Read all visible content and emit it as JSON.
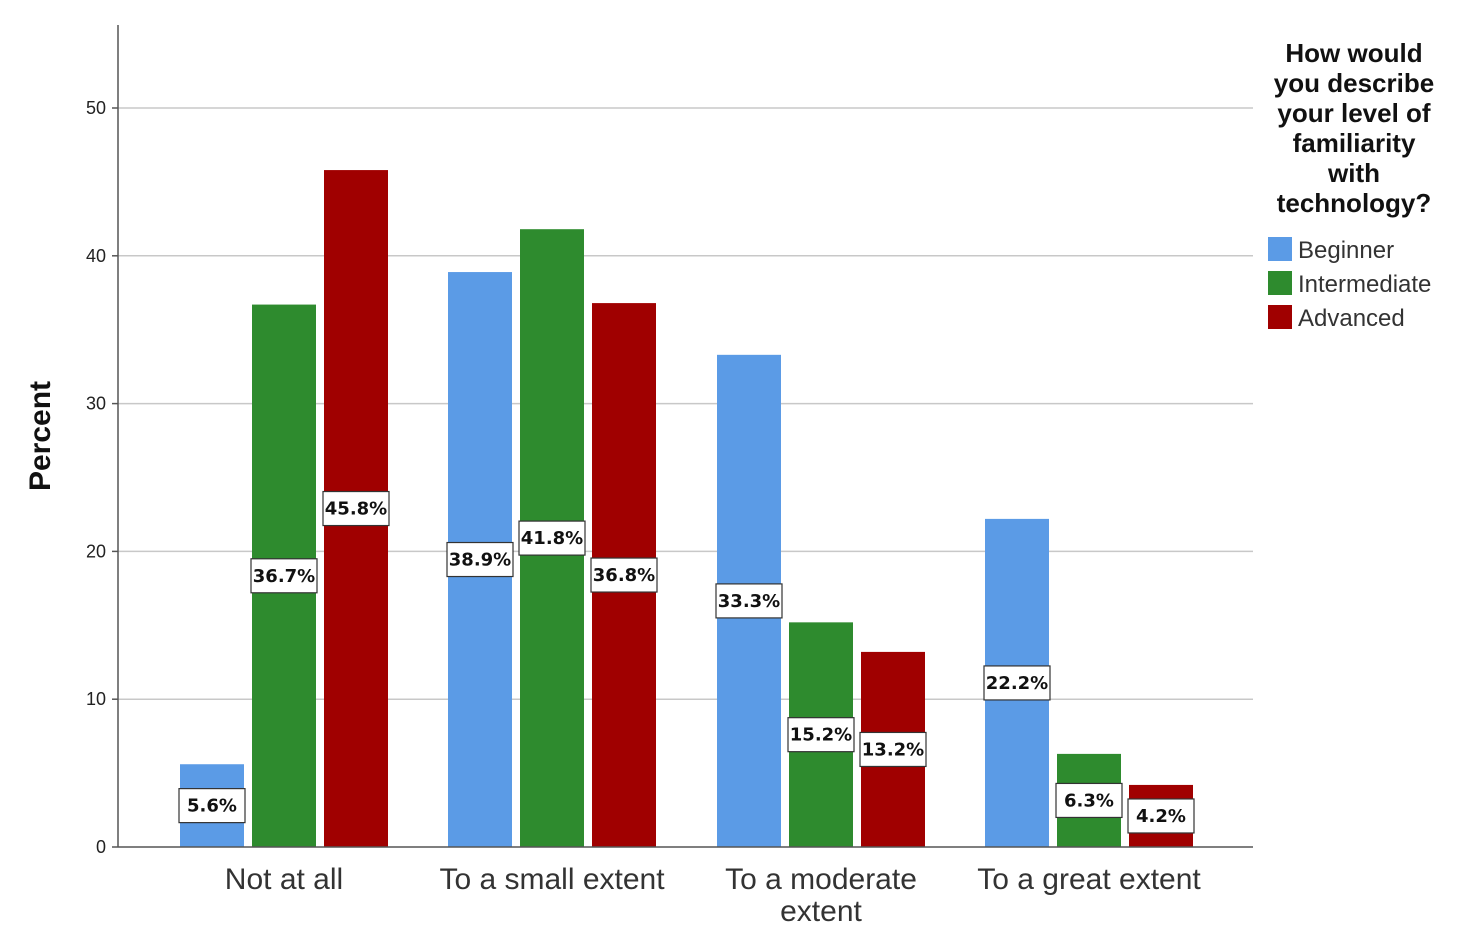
{
  "chart_data": {
    "type": "bar",
    "categories": [
      "Not at all",
      "To a small extent",
      "To a moderate extent",
      "To a great extent"
    ],
    "series": [
      {
        "name": "Beginner",
        "values": [
          5.6,
          38.9,
          33.3,
          22.2
        ],
        "labels": [
          "5.6%",
          "38.9%",
          "33.3%",
          "22.2%"
        ],
        "color": "#5b9be6"
      },
      {
        "name": "Intermediate",
        "values": [
          36.7,
          41.8,
          15.2,
          6.3
        ],
        "labels": [
          "36.7%",
          "41.8%",
          "15.2%",
          "6.3%"
        ],
        "color": "#2e8b2e"
      },
      {
        "name": "Advanced",
        "values": [
          45.8,
          36.8,
          13.2,
          4.2
        ],
        "labels": [
          "45.8%",
          "36.8%",
          "13.2%",
          "4.2%"
        ],
        "color": "#a00000"
      }
    ],
    "ylabel": "Percent",
    "xlabel": "",
    "ylim": [
      0,
      55
    ],
    "yticks": [
      0,
      10,
      20,
      30,
      40,
      50
    ],
    "grid": true,
    "legend_title_lines": [
      "How would",
      "you describe",
      "your level of",
      "familiarity",
      "with",
      "technology?"
    ],
    "legend_position": "top-right"
  }
}
